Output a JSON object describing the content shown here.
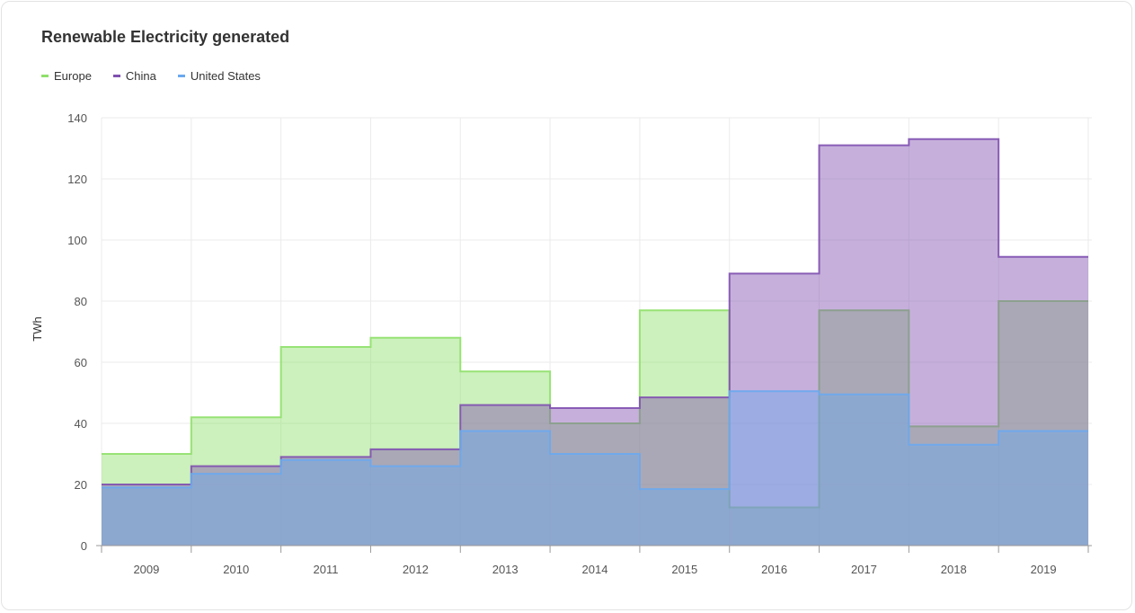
{
  "chart_data": {
    "type": "area",
    "step": true,
    "title": "Renewable Electricity generated",
    "ylabel": "TWh",
    "xlabel": "",
    "categories": [
      "2009",
      "2010",
      "2011",
      "2012",
      "2013",
      "2014",
      "2015",
      "2016",
      "2017",
      "2018",
      "2019"
    ],
    "ylim": [
      0,
      140
    ],
    "yticks": [
      0,
      20,
      40,
      60,
      80,
      100,
      120,
      140
    ],
    "grid": true,
    "legend_position": "top-left",
    "series": [
      {
        "name": "Europe",
        "color": "#8fe06a",
        "values": [
          30,
          42,
          65,
          68,
          57,
          40,
          77,
          12.5,
          77,
          39,
          80
        ]
      },
      {
        "name": "China",
        "color": "#8050b0",
        "values": [
          20,
          26,
          29,
          31.5,
          46,
          45,
          48.5,
          89,
          131,
          133,
          94.5
        ]
      },
      {
        "name": "United States",
        "color": "#6aa8ee",
        "values": [
          19,
          23.5,
          28,
          26,
          37.5,
          30,
          18.5,
          50.5,
          49.5,
          33,
          37.5
        ]
      }
    ]
  }
}
